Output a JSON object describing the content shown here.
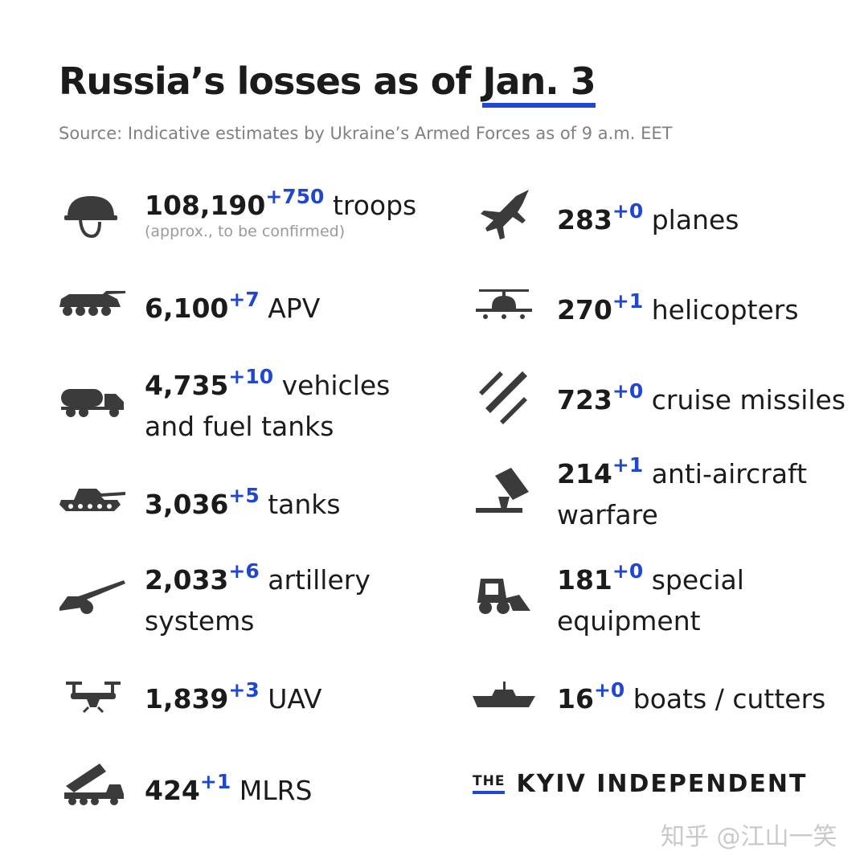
{
  "header": {
    "title_pre": "Russia’s losses as of ",
    "title_date": "Jan. 3",
    "source": "Source: Indicative estimates by Ukraine’s Armed Forces as of 9 a.m. EET"
  },
  "items": {
    "troops": {
      "value": "108,190",
      "delta": "+750",
      "label": "troops",
      "note": "(approx., to be confirmed)"
    },
    "apv": {
      "value": "6,100",
      "delta": "+7",
      "label": "APV"
    },
    "vehicles": {
      "value": "4,735",
      "delta": "+10",
      "label": "vehicles",
      "label2": "and fuel tanks"
    },
    "tanks": {
      "value": "3,036",
      "delta": "+5",
      "label": "tanks"
    },
    "artillery": {
      "value": "2,033",
      "delta": "+6",
      "label": "artillery",
      "label2": "systems"
    },
    "uav": {
      "value": "1,839",
      "delta": "+3",
      "label": "UAV"
    },
    "mlrs": {
      "value": "424",
      "delta": "+1",
      "label": "MLRS"
    },
    "planes": {
      "value": "283",
      "delta": "+0",
      "label": "planes"
    },
    "helicopters": {
      "value": "270",
      "delta": "+1",
      "label": "helicopters"
    },
    "missiles": {
      "value": "723",
      "delta": "+0",
      "label": "cruise missiles"
    },
    "antiair": {
      "value": "214",
      "delta": "+1",
      "label": "anti-aircraft",
      "label2": "warfare"
    },
    "special": {
      "value": "181",
      "delta": "+0",
      "label": "special",
      "label2": "equipment"
    },
    "boats": {
      "value": "16",
      "delta": "+0",
      "label": "boats / cutters"
    }
  },
  "brand": {
    "the": "THE",
    "name": "KYIV INDEPENDENT"
  },
  "watermark": "知乎 @江山一笑",
  "colors": {
    "accent": "#1f47d1",
    "text": "#1b1b1b",
    "muted": "#808080",
    "icon": "#3b3b3b"
  }
}
